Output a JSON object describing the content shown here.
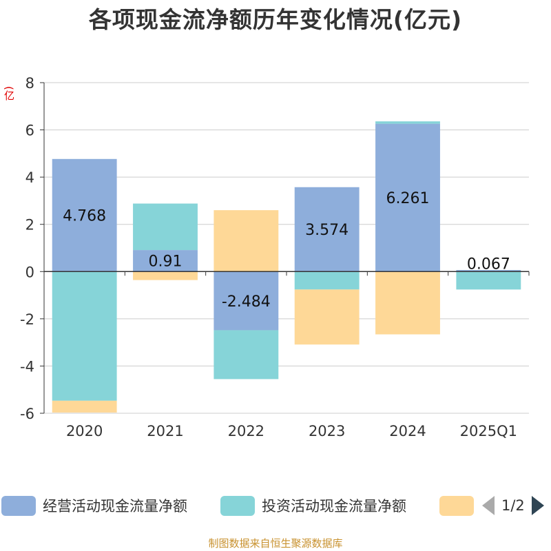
{
  "title": "各项现金流净额历年变化情况(亿元)",
  "y_unit": "(亿元)",
  "source": "制图数据来自恒生聚源数据库",
  "legend": {
    "page_text": "1/2"
  },
  "colors": {
    "operating": "#8eaedb",
    "investing": "#86d4d8",
    "financing": "#fed897",
    "grid": "#cccccc",
    "axis": "#333333"
  },
  "chart_data": {
    "type": "bar",
    "stacked": true,
    "title": "各项现金流净额历年变化情况(亿元)",
    "ylabel": "(亿元)",
    "ylim": [
      -6,
      8
    ],
    "yticks": [
      -6,
      -4,
      -2,
      0,
      2,
      4,
      6,
      8
    ],
    "grid": true,
    "legend_position": "bottom",
    "categories": [
      "2020",
      "2021",
      "2022",
      "2023",
      "2024",
      "2025Q1"
    ],
    "series": [
      {
        "name": "经营活动现金流量净额",
        "color": "#8eaedb",
        "values": [
          4.768,
          0.91,
          -2.484,
          3.574,
          6.261,
          0.067
        ],
        "labels": [
          "4.768",
          "0.91",
          "-2.484",
          "3.574",
          "6.261",
          "0.067"
        ]
      },
      {
        "name": "投资活动现金流量净额",
        "color": "#86d4d8",
        "values": [
          -5.47,
          1.97,
          -2.07,
          -0.76,
          0.1,
          -0.76
        ]
      },
      {
        "name": "",
        "color": "#fed897",
        "values": [
          -0.5,
          -0.36,
          2.6,
          -2.33,
          -2.66,
          0
        ]
      }
    ]
  }
}
